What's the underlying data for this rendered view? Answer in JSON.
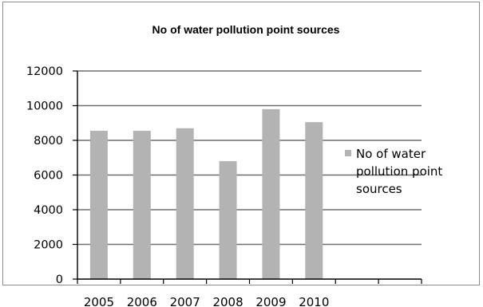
{
  "chart_data": {
    "type": "bar",
    "title": "No of water pollution point sources",
    "categories": [
      "2005",
      "2006",
      "2007",
      "2008",
      "2009",
      "2010"
    ],
    "series": [
      {
        "name": "No of water pollution point sources",
        "values": [
          8550,
          8550,
          8700,
          6800,
          9800,
          9050
        ]
      }
    ],
    "ylim": [
      0,
      12000
    ],
    "yticks": [
      "0",
      "2000",
      "4000",
      "6000",
      "8000",
      "10000",
      "12000"
    ],
    "grid": true,
    "legend_position": "right",
    "bar_color": "#b3b3b3",
    "legend_lines": [
      "No of water",
      "pollution point",
      "sources"
    ]
  }
}
